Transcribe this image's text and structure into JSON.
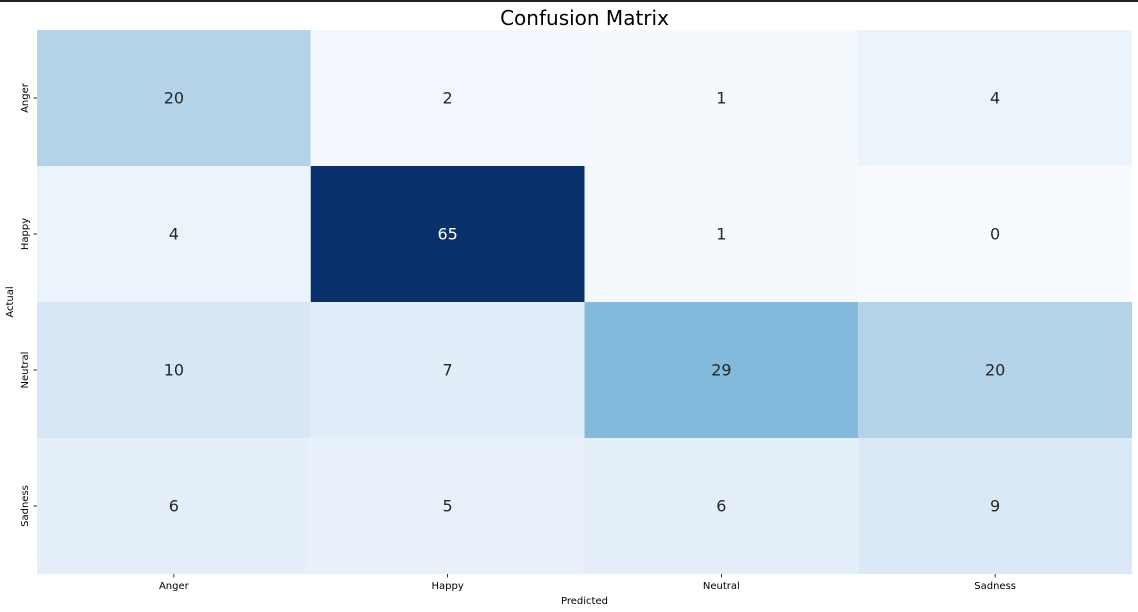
{
  "chart_data": {
    "type": "heatmap",
    "title": "Confusion Matrix",
    "xlabel": "Predicted",
    "ylabel": "Actual",
    "x_categories": [
      "Anger",
      "Happy",
      "Neutral",
      "Sadness"
    ],
    "y_categories": [
      "Anger",
      "Happy",
      "Neutral",
      "Sadness"
    ],
    "values": [
      [
        20,
        2,
        1,
        4
      ],
      [
        4,
        65,
        1,
        0
      ],
      [
        10,
        7,
        29,
        20
      ],
      [
        6,
        5,
        6,
        9
      ]
    ],
    "colormap": "Blues",
    "value_range": [
      0,
      65
    ],
    "colorbar": false,
    "annotations": true
  }
}
